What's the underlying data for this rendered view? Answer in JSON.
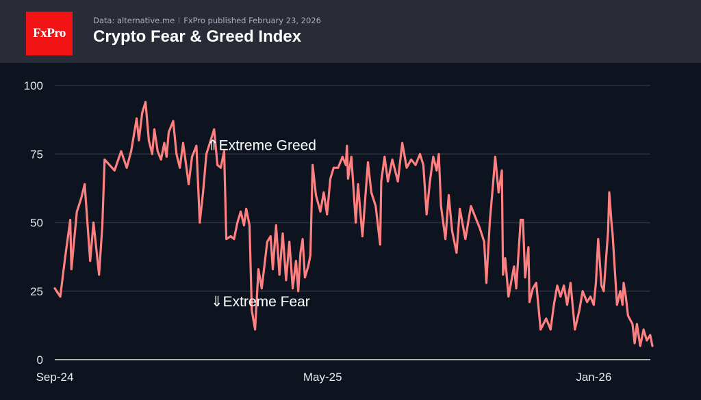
{
  "header": {
    "logo_text": "FxPro",
    "source": "Data: alternative.me",
    "published": "FxPro published February 23, 2026",
    "title": "Crypto Fear & Greed Index"
  },
  "colors": {
    "background": "#0d1420",
    "header": "#292c37",
    "line": "#ff8080",
    "logo": "#f21414",
    "grid": "#2a3140"
  },
  "chart_data": {
    "type": "line",
    "title": "Crypto Fear & Greed Index",
    "xlabel": "",
    "ylabel": "",
    "ylim": [
      0,
      100
    ],
    "xlim": [
      "2024-09-01",
      "2026-02-23"
    ],
    "grid": true,
    "yticks": [
      "0",
      "25",
      "50",
      "75",
      "100"
    ],
    "xticks": [
      {
        "label": "Sep-24",
        "date": "2024-09-01"
      },
      {
        "label": "May-25",
        "date": "2025-05-01"
      },
      {
        "label": "Jan-26",
        "date": "2026-01-01"
      }
    ],
    "annotations": [
      {
        "text": "⇑Extreme Greed",
        "y": 75
      },
      {
        "text": "⇓Extreme Fear",
        "y": 25
      }
    ],
    "series": [
      {
        "color": "#ff8080",
        "points": [
          [
            "2024-09-01",
            26
          ],
          [
            "2024-09-06",
            23
          ],
          [
            "2024-09-10",
            36
          ],
          [
            "2024-09-15",
            51
          ],
          [
            "2024-09-16",
            33
          ],
          [
            "2024-09-21",
            54
          ],
          [
            "2024-09-25",
            59
          ],
          [
            "2024-09-28",
            64
          ],
          [
            "2024-10-03",
            36
          ],
          [
            "2024-10-06",
            50
          ],
          [
            "2024-10-11",
            31
          ],
          [
            "2024-10-14",
            49
          ],
          [
            "2024-10-16",
            73
          ],
          [
            "2024-10-25",
            69
          ],
          [
            "2024-10-31",
            76
          ],
          [
            "2024-11-05",
            70
          ],
          [
            "2024-11-09",
            76
          ],
          [
            "2024-11-14",
            88
          ],
          [
            "2024-11-16",
            80
          ],
          [
            "2024-11-19",
            90
          ],
          [
            "2024-11-22",
            94
          ],
          [
            "2024-11-25",
            80
          ],
          [
            "2024-11-28",
            75
          ],
          [
            "2024-11-30",
            84
          ],
          [
            "2024-12-03",
            76
          ],
          [
            "2024-12-06",
            73
          ],
          [
            "2024-12-09",
            79
          ],
          [
            "2024-12-11",
            74
          ],
          [
            "2024-12-13",
            83
          ],
          [
            "2024-12-17",
            87
          ],
          [
            "2024-12-20",
            75
          ],
          [
            "2024-12-23",
            70
          ],
          [
            "2024-12-26",
            79
          ],
          [
            "2024-12-28",
            73
          ],
          [
            "2024-12-31",
            64
          ],
          [
            "2025-01-03",
            74
          ],
          [
            "2025-01-07",
            78
          ],
          [
            "2025-01-10",
            50
          ],
          [
            "2025-01-13",
            61
          ],
          [
            "2025-01-16",
            75
          ],
          [
            "2025-01-23",
            84
          ],
          [
            "2025-01-26",
            71
          ],
          [
            "2025-01-29",
            70
          ],
          [
            "2025-02-01",
            76
          ],
          [
            "2025-02-03",
            44
          ],
          [
            "2025-02-07",
            45
          ],
          [
            "2025-02-10",
            44
          ],
          [
            "2025-02-13",
            50
          ],
          [
            "2025-02-16",
            54
          ],
          [
            "2025-02-19",
            49
          ],
          [
            "2025-02-21",
            55
          ],
          [
            "2025-02-24",
            49
          ],
          [
            "2025-02-26",
            18
          ],
          [
            "2025-03-01",
            11
          ],
          [
            "2025-03-04",
            33
          ],
          [
            "2025-03-07",
            26
          ],
          [
            "2025-03-12",
            43
          ],
          [
            "2025-03-15",
            45
          ],
          [
            "2025-03-17",
            33
          ],
          [
            "2025-03-20",
            49
          ],
          [
            "2025-03-23",
            31
          ],
          [
            "2025-03-26",
            46
          ],
          [
            "2025-03-29",
            29
          ],
          [
            "2025-04-01",
            43
          ],
          [
            "2025-04-04",
            26
          ],
          [
            "2025-04-07",
            36
          ],
          [
            "2025-04-09",
            25
          ],
          [
            "2025-04-11",
            39
          ],
          [
            "2025-04-13",
            44
          ],
          [
            "2025-04-15",
            30
          ],
          [
            "2025-04-18",
            34
          ],
          [
            "2025-04-20",
            38
          ],
          [
            "2025-04-22",
            71
          ],
          [
            "2025-04-25",
            60
          ],
          [
            "2025-04-29",
            54
          ],
          [
            "2025-05-02",
            61
          ],
          [
            "2025-05-05",
            53
          ],
          [
            "2025-05-08",
            66
          ],
          [
            "2025-05-11",
            70
          ],
          [
            "2025-05-15",
            70
          ],
          [
            "2025-05-19",
            74
          ],
          [
            "2025-05-22",
            71
          ],
          [
            "2025-05-23",
            78
          ],
          [
            "2025-05-24",
            66
          ],
          [
            "2025-05-27",
            74
          ],
          [
            "2025-05-31",
            50
          ],
          [
            "2025-06-02",
            64
          ],
          [
            "2025-06-06",
            45
          ],
          [
            "2025-06-11",
            72
          ],
          [
            "2025-06-14",
            61
          ],
          [
            "2025-06-18",
            56
          ],
          [
            "2025-06-22",
            42
          ],
          [
            "2025-06-23",
            65
          ],
          [
            "2025-06-26",
            74
          ],
          [
            "2025-06-29",
            65
          ],
          [
            "2025-07-03",
            73
          ],
          [
            "2025-07-08",
            65
          ],
          [
            "2025-07-12",
            79
          ],
          [
            "2025-07-16",
            70
          ],
          [
            "2025-07-20",
            73
          ],
          [
            "2025-07-24",
            71
          ],
          [
            "2025-07-28",
            75
          ],
          [
            "2025-07-31",
            71
          ],
          [
            "2025-08-03",
            53
          ],
          [
            "2025-08-06",
            65
          ],
          [
            "2025-08-09",
            74
          ],
          [
            "2025-08-12",
            69
          ],
          [
            "2025-08-14",
            75
          ],
          [
            "2025-08-16",
            56
          ],
          [
            "2025-08-20",
            44
          ],
          [
            "2025-08-23",
            60
          ],
          [
            "2025-08-26",
            47
          ],
          [
            "2025-08-30",
            39
          ],
          [
            "2025-09-02",
            55
          ],
          [
            "2025-09-07",
            44
          ],
          [
            "2025-09-12",
            56
          ],
          [
            "2025-09-15",
            53
          ],
          [
            "2025-09-20",
            48
          ],
          [
            "2025-09-24",
            43
          ],
          [
            "2025-09-26",
            28
          ],
          [
            "2025-09-29",
            50
          ],
          [
            "2025-10-02",
            64
          ],
          [
            "2025-10-04",
            74
          ],
          [
            "2025-10-07",
            61
          ],
          [
            "2025-10-10",
            69
          ],
          [
            "2025-10-11",
            31
          ],
          [
            "2025-10-13",
            37
          ],
          [
            "2025-10-16",
            23
          ],
          [
            "2025-10-21",
            34
          ],
          [
            "2025-10-23",
            26
          ],
          [
            "2025-10-27",
            51
          ],
          [
            "2025-10-29",
            51
          ],
          [
            "2025-10-31",
            30
          ],
          [
            "2025-11-03",
            41
          ],
          [
            "2025-11-04",
            21
          ],
          [
            "2025-11-07",
            26
          ],
          [
            "2025-11-10",
            28
          ],
          [
            "2025-11-14",
            11
          ],
          [
            "2025-11-19",
            15
          ],
          [
            "2025-11-23",
            11
          ],
          [
            "2025-11-26",
            20
          ],
          [
            "2025-11-29",
            27
          ],
          [
            "2025-12-02",
            23
          ],
          [
            "2025-12-05",
            27
          ],
          [
            "2025-12-08",
            20
          ],
          [
            "2025-12-11",
            28
          ],
          [
            "2025-12-15",
            11
          ],
          [
            "2025-12-19",
            18
          ],
          [
            "2025-12-22",
            25
          ],
          [
            "2025-12-26",
            21
          ],
          [
            "2025-12-29",
            23
          ],
          [
            "2026-01-01",
            20
          ],
          [
            "2026-01-03",
            28
          ],
          [
            "2026-01-05",
            44
          ],
          [
            "2026-01-08",
            27
          ],
          [
            "2026-01-10",
            25
          ],
          [
            "2026-01-14",
            47
          ],
          [
            "2026-01-15",
            61
          ],
          [
            "2026-01-17",
            50
          ],
          [
            "2026-01-18",
            46
          ],
          [
            "2026-01-22",
            20
          ],
          [
            "2026-01-25",
            25
          ],
          [
            "2026-01-27",
            20
          ],
          [
            "2026-01-28",
            28
          ],
          [
            "2026-01-30",
            23
          ],
          [
            "2026-02-01",
            16
          ],
          [
            "2026-02-05",
            13
          ],
          [
            "2026-02-07",
            6
          ],
          [
            "2026-02-09",
            13
          ],
          [
            "2026-02-12",
            5
          ],
          [
            "2026-02-15",
            11
          ],
          [
            "2026-02-18",
            7
          ],
          [
            "2026-02-21",
            9
          ],
          [
            "2026-02-23",
            5
          ]
        ]
      }
    ]
  }
}
